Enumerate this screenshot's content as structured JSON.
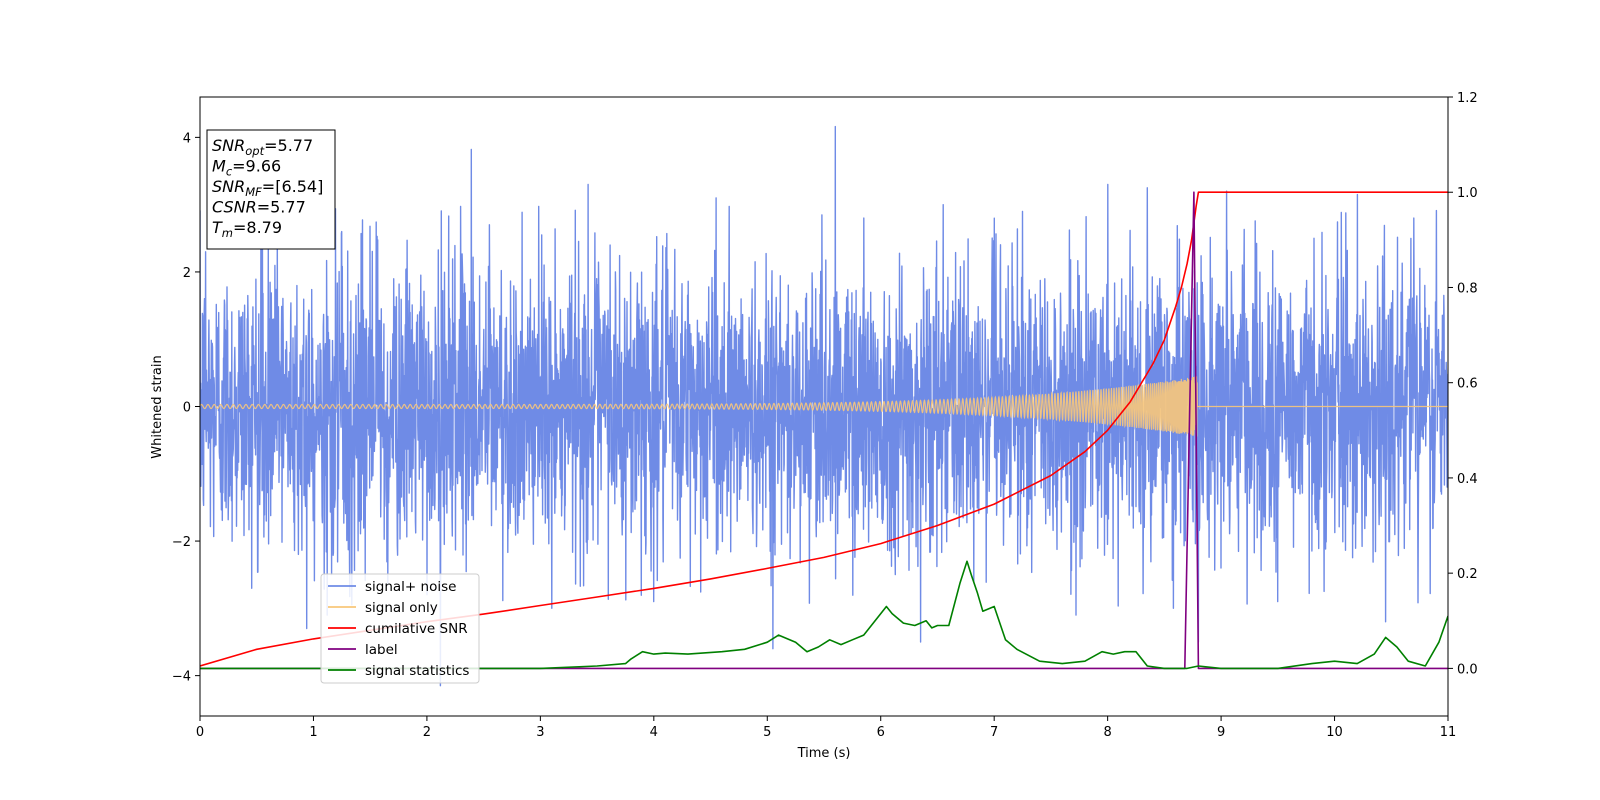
{
  "chart_data": {
    "type": "line",
    "xlabel": "Time (s)",
    "ylabel": "Whitened strain",
    "xlim": [
      0,
      11
    ],
    "ylim": [
      -4.6,
      4.6
    ],
    "y2lim": [
      -0.1,
      1.2
    ],
    "x_ticks": [
      "0",
      "1",
      "2",
      "3",
      "4",
      "5",
      "6",
      "7",
      "8",
      "9",
      "10",
      "11"
    ],
    "y_ticks": [
      "−4",
      "−2",
      "0",
      "2",
      "4"
    ],
    "y2_ticks": [
      "0.0",
      "0.2",
      "0.4",
      "0.6",
      "0.8",
      "1.0",
      "1.2"
    ],
    "legend_position": "lower-left",
    "info_box": {
      "position": "upper-left",
      "lines": [
        {
          "sym": "SNR",
          "sub": "opt",
          "text": "=5.77"
        },
        {
          "sym": "M",
          "sub": "c",
          "text": "=9.66"
        },
        {
          "sym": "SNR",
          "sub": "MF",
          "text": "=[6.54]"
        },
        {
          "sym": "CSNR",
          "sub": "",
          "text": "=5.77"
        },
        {
          "sym": "T",
          "sub": "m",
          "text": "=8.79"
        }
      ]
    },
    "series": [
      {
        "name": "signal+ noise",
        "axis": "left",
        "color": "#6f8be6",
        "style": "noise",
        "noise_std": 1.05,
        "t_range": [
          0,
          11
        ],
        "spikes": [
          [
            0.05,
            2.3
          ],
          [
            0.55,
            2.9
          ],
          [
            0.68,
            2.5
          ],
          [
            0.94,
            -3.3
          ],
          [
            1.12,
            -3.1
          ],
          [
            1.25,
            2.6
          ],
          [
            2.12,
            -4.15
          ],
          [
            2.39,
            3.82
          ],
          [
            2.55,
            2.7
          ],
          [
            3.1,
            -3.0
          ],
          [
            3.42,
            3.3
          ],
          [
            4.0,
            -2.9
          ],
          [
            4.55,
            3.1
          ],
          [
            5.05,
            -3.6
          ],
          [
            5.6,
            4.16
          ],
          [
            5.85,
            2.8
          ],
          [
            6.35,
            -3.5
          ],
          [
            6.55,
            3.0
          ],
          [
            6.82,
            -2.6
          ],
          [
            7.25,
            2.9
          ],
          [
            7.72,
            -3.1
          ],
          [
            8.0,
            3.3
          ],
          [
            8.35,
            3.25
          ],
          [
            8.58,
            -3.0
          ],
          [
            8.8,
            -3.5
          ],
          [
            9.05,
            3.2
          ],
          [
            9.5,
            -2.9
          ],
          [
            9.82,
            2.5
          ],
          [
            10.2,
            3.15
          ],
          [
            10.45,
            -3.2
          ],
          [
            10.7,
            2.8
          ]
        ]
      },
      {
        "name": "signal only",
        "axis": "left",
        "color": "#f8c77a",
        "style": "chirp",
        "t_merge": 8.79,
        "amp_start": 0.03,
        "amp_end": 0.45
      },
      {
        "name": "cumilative SNR",
        "axis": "right",
        "color": "#ff0000",
        "x": [
          0,
          0.5,
          1,
          1.5,
          2,
          2.5,
          3,
          3.5,
          4,
          4.5,
          5,
          5.5,
          6,
          6.5,
          7,
          7.5,
          7.8,
          8,
          8.2,
          8.4,
          8.5,
          8.6,
          8.65,
          8.7,
          8.74,
          8.78,
          8.8,
          9,
          10,
          11
        ],
        "values": [
          0.005,
          0.04,
          0.062,
          0.08,
          0.098,
          0.114,
          0.132,
          0.15,
          0.168,
          0.188,
          0.21,
          0.233,
          0.262,
          0.3,
          0.345,
          0.405,
          0.455,
          0.5,
          0.56,
          0.64,
          0.69,
          0.76,
          0.8,
          0.85,
          0.9,
          0.97,
          1.0,
          1.0,
          1.0,
          1.0
        ]
      },
      {
        "name": "label",
        "axis": "right",
        "color": "#800080",
        "x": [
          0,
          8.68,
          8.72,
          8.76,
          8.8,
          11
        ],
        "values": [
          0.0,
          0.0,
          0.5,
          1.0,
          0.0,
          0.0
        ]
      },
      {
        "name": "signal statistics",
        "axis": "right",
        "color": "#008000",
        "x": [
          0,
          1,
          2,
          3,
          3.5,
          3.75,
          3.8,
          3.9,
          4.0,
          4.1,
          4.3,
          4.6,
          4.8,
          5.0,
          5.1,
          5.25,
          5.35,
          5.45,
          5.55,
          5.65,
          5.75,
          5.85,
          5.95,
          6.05,
          6.1,
          6.2,
          6.3,
          6.4,
          6.45,
          6.5,
          6.6,
          6.7,
          6.76,
          6.8,
          6.85,
          6.9,
          7.0,
          7.1,
          7.2,
          7.4,
          7.6,
          7.8,
          7.95,
          8.05,
          8.15,
          8.25,
          8.35,
          8.5,
          8.7,
          8.8,
          9.0,
          9.5,
          9.8,
          10.0,
          10.2,
          10.35,
          10.45,
          10.55,
          10.65,
          10.8,
          10.92,
          11.0
        ],
        "values": [
          0.0,
          0.0,
          0.0,
          0.0,
          0.005,
          0.01,
          0.02,
          0.035,
          0.03,
          0.032,
          0.03,
          0.035,
          0.04,
          0.055,
          0.07,
          0.055,
          0.035,
          0.045,
          0.06,
          0.05,
          0.06,
          0.07,
          0.1,
          0.13,
          0.115,
          0.095,
          0.09,
          0.1,
          0.085,
          0.09,
          0.09,
          0.18,
          0.225,
          0.195,
          0.16,
          0.12,
          0.13,
          0.06,
          0.04,
          0.015,
          0.01,
          0.015,
          0.035,
          0.03,
          0.035,
          0.035,
          0.005,
          0.0,
          0.0,
          0.005,
          0.0,
          0.0,
          0.01,
          0.015,
          0.01,
          0.03,
          0.065,
          0.045,
          0.015,
          0.005,
          0.055,
          0.11
        ]
      }
    ]
  }
}
